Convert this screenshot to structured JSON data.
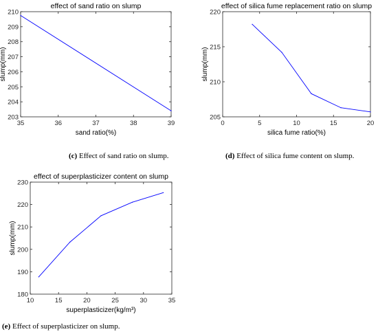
{
  "chart_data": [
    {
      "id": "c",
      "type": "line",
      "title": "effect of sand ratio on slump",
      "xlabel": "sand ratio(%)",
      "ylabel": "slump(mm)",
      "xlim": [
        35,
        39
      ],
      "ylim": [
        203,
        210
      ],
      "xticks": [
        35,
        36,
        37,
        38,
        39
      ],
      "yticks": [
        203,
        204,
        205,
        206,
        207,
        208,
        209,
        210
      ],
      "x": [
        35,
        39
      ],
      "y": [
        209.75,
        203.4
      ],
      "line_color": "#0000ff",
      "grid": false,
      "caption_label": "(c)",
      "caption_text": " Effect of sand ratio on slump."
    },
    {
      "id": "d",
      "type": "line",
      "title": "effect of silica fume replacement ratio on slump",
      "xlabel": "silica fume ratio(%)",
      "ylabel": "slump(mm)",
      "xlim": [
        0,
        20
      ],
      "ylim": [
        205,
        220
      ],
      "xticks": [
        0,
        5,
        10,
        15,
        20
      ],
      "yticks": [
        205,
        210,
        215,
        220
      ],
      "x": [
        4,
        8,
        12,
        16,
        20
      ],
      "y": [
        218.2,
        214.2,
        208.3,
        206.3,
        205.7
      ],
      "line_color": "#0000ff",
      "grid": false,
      "caption_label": "(d)",
      "caption_text": " Effect of silica fume content on slump."
    },
    {
      "id": "e",
      "type": "line",
      "title": "effect of superplasticizer content on slump",
      "xlabel": "superplasticizer(kg/m³)",
      "ylabel": "slump(mm)",
      "xlim": [
        10,
        35
      ],
      "ylim": [
        180,
        230
      ],
      "xticks": [
        10,
        15,
        20,
        25,
        30,
        35
      ],
      "yticks": [
        180,
        190,
        200,
        210,
        220,
        230
      ],
      "x": [
        11.5,
        17,
        22.5,
        28,
        33.5
      ],
      "y": [
        187.7,
        203.2,
        215,
        221,
        225.3
      ],
      "line_color": "#0000ff",
      "grid": false,
      "caption_label": "(e)",
      "caption_text": " Effect of superplasticizer on slump."
    }
  ]
}
